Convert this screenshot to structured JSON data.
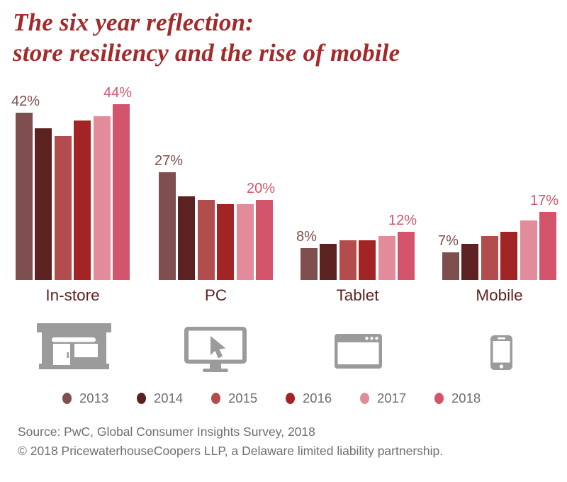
{
  "title": {
    "line1": "The six year reflection:",
    "line2": "store resiliency and the rise of mobile"
  },
  "chart_data": {
    "type": "bar",
    "categories": [
      "In-store",
      "PC",
      "Tablet",
      "Mobile"
    ],
    "series": [
      {
        "name": "2013",
        "color": "#7F4E4E",
        "values": [
          42,
          27,
          8,
          7
        ]
      },
      {
        "name": "2014",
        "color": "#5C2121",
        "values": [
          38,
          21,
          9,
          9
        ]
      },
      {
        "name": "2015",
        "color": "#B34D4D",
        "values": [
          36,
          20,
          10,
          11
        ]
      },
      {
        "name": "2016",
        "color": "#A32424",
        "values": [
          40,
          19,
          10,
          12
        ]
      },
      {
        "name": "2017",
        "color": "#E28C9B",
        "values": [
          41,
          19,
          11,
          15
        ]
      },
      {
        "name": "2018",
        "color": "#D4556B",
        "values": [
          44,
          20,
          12,
          17
        ]
      }
    ],
    "value_labels": [
      {
        "category": "In-store",
        "first": "42%",
        "last": "44%"
      },
      {
        "category": "PC",
        "first": "27%",
        "last": "20%"
      },
      {
        "category": "Tablet",
        "first": "8%",
        "last": "12%"
      },
      {
        "category": "Mobile",
        "first": "7%",
        "last": "17%"
      }
    ],
    "unit": "%",
    "ylim": [
      0,
      46
    ],
    "grid": false,
    "legend_position": "bottom",
    "legend": [
      "2013",
      "2014",
      "2015",
      "2016",
      "2017",
      "2018"
    ]
  },
  "icons": [
    {
      "category": "In-store",
      "name": "storefront-icon"
    },
    {
      "category": "PC",
      "name": "desktop-monitor-cursor-icon"
    },
    {
      "category": "Tablet",
      "name": "browser-window-icon"
    },
    {
      "category": "Mobile",
      "name": "smartphone-icon"
    }
  ],
  "footer": {
    "line1": "Source: PwC, Global Consumer Insights Survey, 2018",
    "line2": "© 2018 PricewaterhouseCoopers LLP, a Delaware limited liability partnership."
  },
  "colors": {
    "title": "#A32A2B",
    "category_label": "#5E2320",
    "text_gray": "#6D6E71",
    "icon_gray": "#9B9B9B",
    "background": "#FFFFFF"
  }
}
